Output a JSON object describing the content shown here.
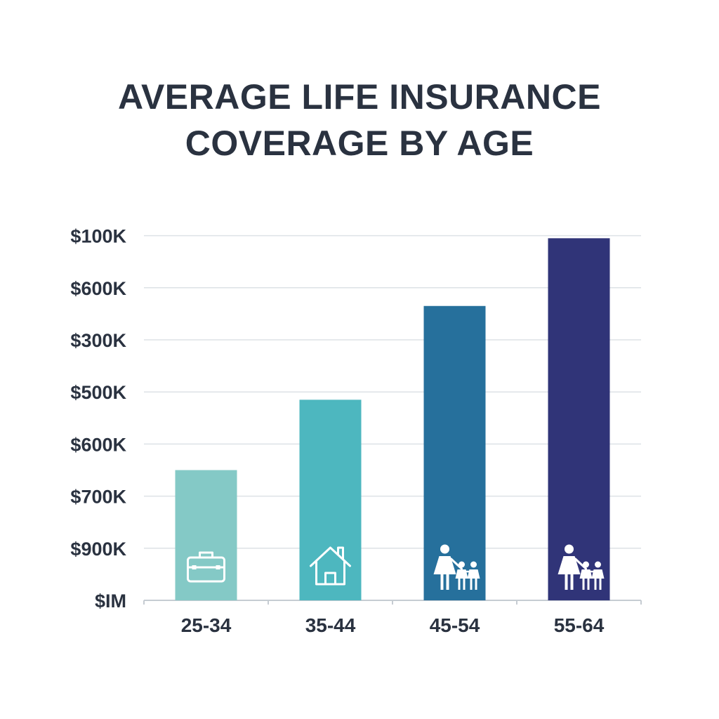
{
  "chart_data": {
    "type": "bar",
    "title_lines": [
      "AVERAGE LIFE INSURANCE",
      "COVERAGE BY AGE"
    ],
    "xlabel": "",
    "ylabel": "",
    "categories": [
      "25-34",
      "35-44",
      "45-54",
      "55-64"
    ],
    "y_tick_labels": [
      "$100K",
      "$600K",
      "$300K",
      "$500K",
      "$600K",
      "$700K",
      "$900K",
      "$IM"
    ],
    "values": [
      2.5,
      3.85,
      5.65,
      6.95
    ],
    "value_units": "gridline intervals above baseline (tick labels are non-monotonic)",
    "ylim": [
      0,
      7
    ],
    "grid": true,
    "legend": "none",
    "bar_colors": [
      "#84c9c6",
      "#4db7bf",
      "#26709c",
      "#303478"
    ],
    "grid_color": "#dde2e6",
    "axis_color": "#c6ccd2",
    "bar_icons": [
      "briefcase-icon",
      "house-icon",
      "family-icon",
      "family-icon"
    ]
  }
}
